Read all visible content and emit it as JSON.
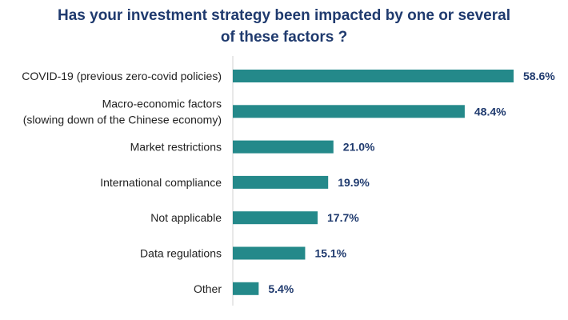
{
  "chart_data": {
    "type": "bar",
    "orientation": "horizontal",
    "title_lines": [
      "Has your investment strategy been impacted by one or several",
      "of these factors ?"
    ],
    "categories": [
      [
        "COVID-19 (previous zero-covid policies)"
      ],
      [
        "Macro-economic factors",
        "(slowing down of the Chinese economy)"
      ],
      [
        "Market restrictions"
      ],
      [
        "International compliance"
      ],
      [
        "Not applicable"
      ],
      [
        "Data regulations"
      ],
      [
        "Other"
      ]
    ],
    "values": [
      58.6,
      48.4,
      21.0,
      19.9,
      17.7,
      15.1,
      5.4
    ],
    "value_labels": [
      "58.6%",
      "48.4%",
      "21.0%",
      "19.9%",
      "17.7%",
      "15.1%",
      "5.4%"
    ],
    "xlim": [
      0,
      58.6
    ],
    "bar_color": "#24898a",
    "title_color": "#1f3a6e",
    "value_label_color": "#1f3a6e"
  }
}
